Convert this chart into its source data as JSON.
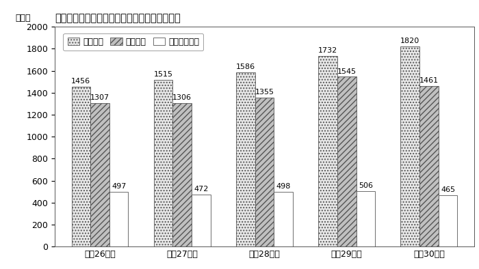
{
  "title": "精神障害の請求、決定及び支給決定件数の推移",
  "ylabel": "（件）",
  "categories": [
    "平成26年度",
    "平成27年度",
    "平成28年度",
    "平成29年度",
    "平成30年度"
  ],
  "series": {
    "請求件数": [
      1456,
      1515,
      1586,
      1732,
      1820
    ],
    "決定件数": [
      1307,
      1306,
      1355,
      1545,
      1461
    ],
    "支給決定件数": [
      497,
      472,
      498,
      506,
      465
    ]
  },
  "ylim": [
    0,
    2000
  ],
  "yticks": [
    0,
    200,
    400,
    600,
    800,
    1000,
    1200,
    1400,
    1600,
    1800,
    2000
  ],
  "bar_styles": {
    "請求件数": {
      "facecolor": "#e8e8e8",
      "hatch": "....",
      "edgecolor": "#555555"
    },
    "決定件数": {
      "facecolor": "#c0c0c0",
      "hatch": "////",
      "edgecolor": "#555555"
    },
    "支給決定件数": {
      "facecolor": "#ffffff",
      "hatch": "",
      "edgecolor": "#555555"
    }
  },
  "legend_labels": [
    "請求件数",
    "決定件数",
    "支給決定件数"
  ],
  "background_color": "#ffffff",
  "bar_width": 0.23,
  "title_fontsize": 10.5,
  "axis_fontsize": 9,
  "label_fontsize": 8
}
